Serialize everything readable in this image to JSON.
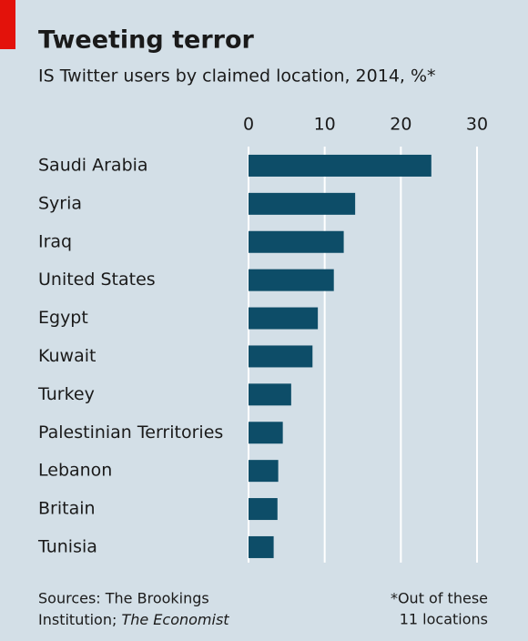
{
  "chart_data": {
    "type": "bar",
    "orientation": "horizontal",
    "title": "Tweeting terror",
    "subtitle": "IS Twitter users by claimed location, 2014, %*",
    "categories": [
      "Saudi Arabia",
      "Syria",
      "Iraq",
      "United States",
      "Egypt",
      "Kuwait",
      "Turkey",
      "Palestinian Territories",
      "Lebanon",
      "Britain",
      "Tunisia"
    ],
    "values": [
      24,
      14,
      12.5,
      11.2,
      9.1,
      8.4,
      5.6,
      4.5,
      3.9,
      3.8,
      3.3
    ],
    "color": "#0d4d68",
    "xlim": [
      0,
      30
    ],
    "xticks": [
      0,
      10,
      20,
      30
    ],
    "grid": true,
    "source": [
      "Sources: The Brookings",
      "Institution; ",
      "The Economist"
    ],
    "note": [
      "*Out of these",
      "11 locations"
    ]
  }
}
